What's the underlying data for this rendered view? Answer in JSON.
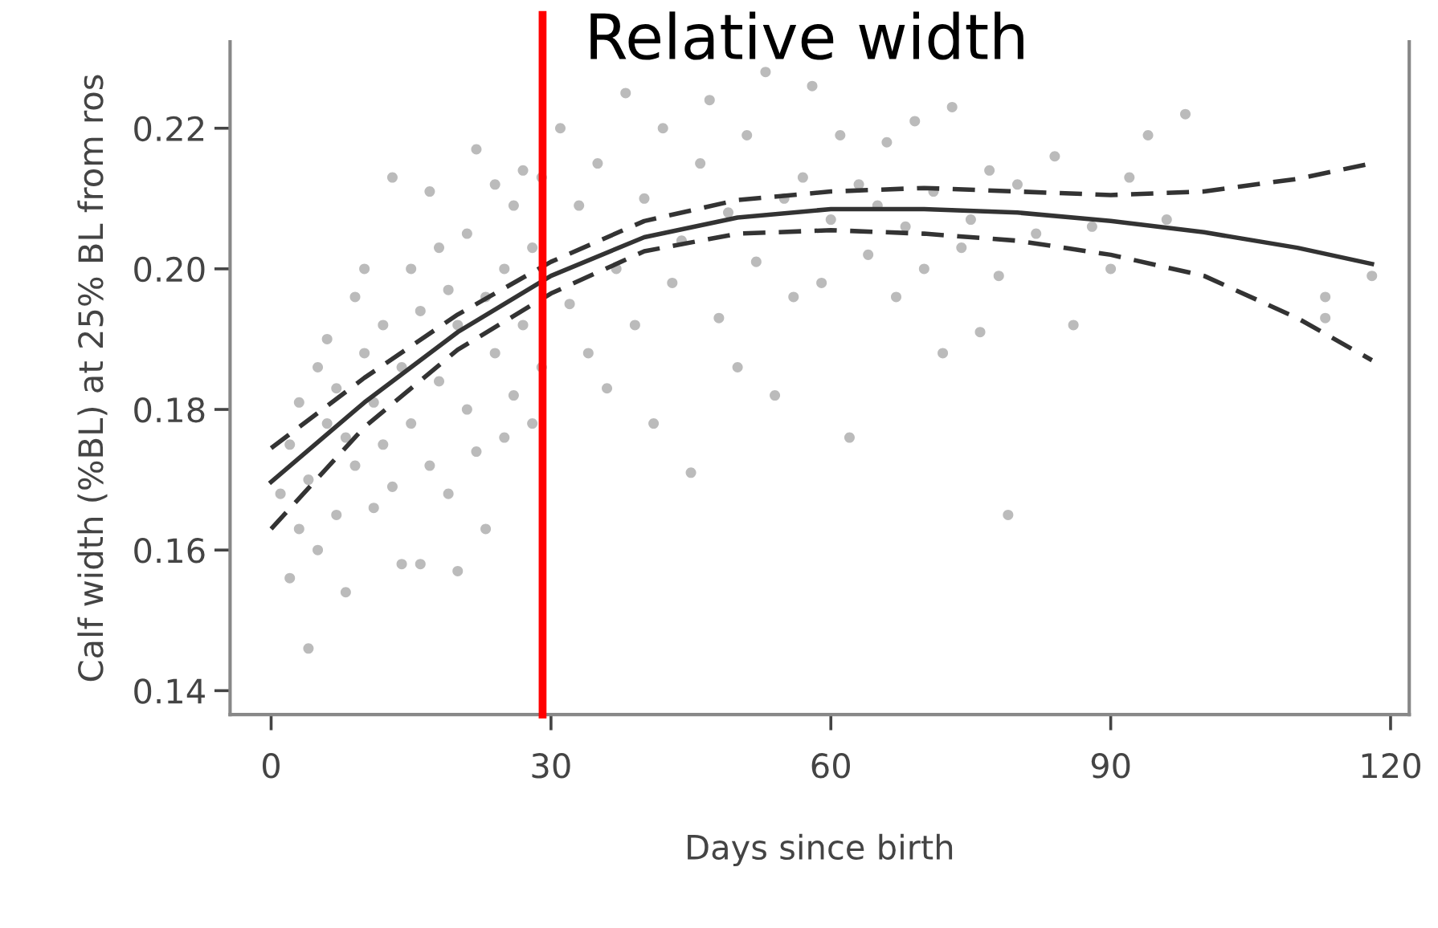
{
  "chart_data": {
    "type": "scatter",
    "xlabel": "Days since birth",
    "ylabel": "Calf width (%BL) at 25% BL from ros",
    "xlim": [
      -4.4,
      122
    ],
    "ylim": [
      0.1366,
      0.2323
    ],
    "xticks": [
      0,
      30,
      60,
      90,
      120
    ],
    "yticks": [
      {
        "value": 0.14,
        "label": "0.14"
      },
      {
        "value": 0.16,
        "label": "0.16"
      },
      {
        "value": 0.18,
        "label": "0.18"
      },
      {
        "value": 0.2,
        "label": "0.20"
      },
      {
        "value": 0.22,
        "label": "0.22"
      }
    ],
    "grid": false,
    "ref_lines": [
      {
        "axis": "x",
        "value": 29.1,
        "label": "Relative width",
        "color": "#ff0000"
      }
    ],
    "series": [
      {
        "color": "#bbbbbb",
        "marker": "circle",
        "x": [
          1,
          2,
          2,
          3,
          3,
          4,
          4,
          5,
          5,
          6,
          6,
          7,
          7,
          8,
          8,
          9,
          9,
          10,
          10,
          11,
          11,
          12,
          12,
          13,
          13,
          14,
          14,
          15,
          15,
          16,
          16,
          17,
          17,
          18,
          18,
          19,
          19,
          20,
          20,
          21,
          21,
          22,
          22,
          23,
          23,
          24,
          24,
          25,
          25,
          26,
          26,
          27,
          27,
          28,
          28,
          29,
          29,
          31,
          32,
          33,
          34,
          35,
          36,
          37,
          38,
          39,
          40,
          41,
          42,
          43,
          44,
          45,
          46,
          47,
          48,
          49,
          50,
          51,
          52,
          53,
          54,
          55,
          56,
          57,
          58,
          59,
          60,
          61,
          62,
          63,
          64,
          65,
          66,
          67,
          68,
          69,
          70,
          71,
          72,
          73,
          74,
          75,
          76,
          77,
          78,
          79,
          80,
          82,
          84,
          86,
          88,
          90,
          92,
          94,
          96,
          98,
          113,
          113,
          118
        ],
        "values": [
          0.168,
          0.156,
          0.175,
          0.163,
          0.181,
          0.146,
          0.17,
          0.16,
          0.186,
          0.178,
          0.19,
          0.165,
          0.183,
          0.154,
          0.176,
          0.172,
          0.196,
          0.188,
          0.2,
          0.181,
          0.166,
          0.192,
          0.175,
          0.169,
          0.213,
          0.186,
          0.158,
          0.2,
          0.178,
          0.194,
          0.158,
          0.211,
          0.172,
          0.184,
          0.203,
          0.168,
          0.197,
          0.157,
          0.192,
          0.205,
          0.18,
          0.174,
          0.217,
          0.196,
          0.163,
          0.188,
          0.212,
          0.176,
          0.2,
          0.209,
          0.182,
          0.214,
          0.192,
          0.178,
          0.203,
          0.213,
          0.186,
          0.22,
          0.195,
          0.209,
          0.188,
          0.215,
          0.183,
          0.2,
          0.225,
          0.192,
          0.21,
          0.178,
          0.22,
          0.198,
          0.204,
          0.171,
          0.215,
          0.224,
          0.193,
          0.208,
          0.186,
          0.219,
          0.201,
          0.228,
          0.182,
          0.21,
          0.196,
          0.213,
          0.226,
          0.198,
          0.207,
          0.219,
          0.176,
          0.212,
          0.202,
          0.209,
          0.218,
          0.196,
          0.206,
          0.221,
          0.2,
          0.211,
          0.188,
          0.223,
          0.203,
          0.207,
          0.191,
          0.214,
          0.199,
          0.165,
          0.212,
          0.205,
          0.216,
          0.192,
          0.206,
          0.2,
          0.213,
          0.219,
          0.207,
          0.222,
          0.193,
          0.196,
          0.199
        ]
      },
      {
        "type": "line",
        "color": "#333333",
        "line_style": "solid",
        "marker": "none",
        "x": [
          0,
          10,
          20,
          30,
          40,
          50,
          60,
          70,
          80,
          90,
          100,
          110,
          118
        ],
        "values": [
          0.1697,
          0.181,
          0.191,
          0.199,
          0.2045,
          0.2073,
          0.2085,
          0.2085,
          0.208,
          0.2068,
          0.2052,
          0.203,
          0.2007
        ]
      },
      {
        "type": "line",
        "color": "#333333",
        "line_style": "dashed",
        "marker": "none",
        "x": [
          0,
          10,
          20,
          30,
          40,
          50,
          60,
          70,
          80,
          90,
          100,
          110,
          118
        ],
        "values": [
          0.1745,
          0.1845,
          0.1935,
          0.201,
          0.2068,
          0.2098,
          0.211,
          0.2115,
          0.211,
          0.2105,
          0.211,
          0.2128,
          0.215
        ]
      },
      {
        "type": "line",
        "color": "#333333",
        "line_style": "dashed",
        "marker": "none",
        "x": [
          0,
          10,
          20,
          30,
          40,
          50,
          60,
          70,
          80,
          90,
          100,
          110,
          118
        ],
        "values": [
          0.163,
          0.1775,
          0.1885,
          0.1965,
          0.2025,
          0.205,
          0.2055,
          0.205,
          0.204,
          0.202,
          0.199,
          0.193,
          0.187
        ]
      }
    ]
  }
}
